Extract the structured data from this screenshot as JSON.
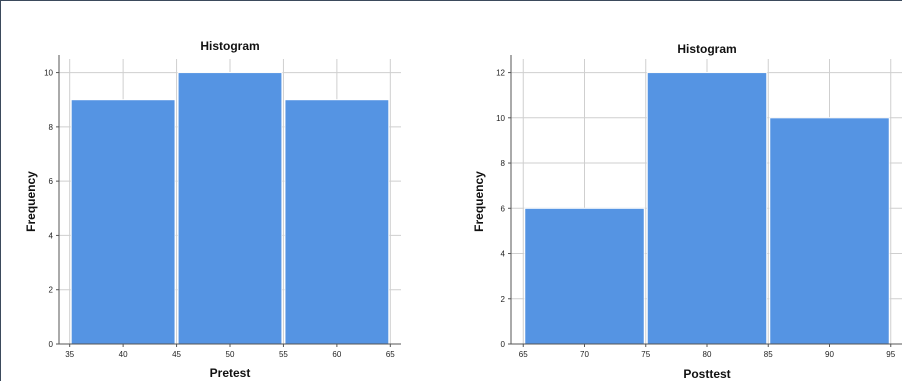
{
  "colors": {
    "bar_fill": "#5594e3",
    "bar_stroke": "#ffffff",
    "grid": "#cfcfcf",
    "axis": "#555555",
    "frame": "#3b4a5c"
  },
  "chart_data": [
    {
      "type": "bar",
      "title": "Histogram",
      "xlabel": "Pretest",
      "ylabel": "Frequency",
      "bins": [
        {
          "x0": 35,
          "x1": 45,
          "value": 9
        },
        {
          "x0": 45,
          "x1": 55,
          "value": 10
        },
        {
          "x0": 55,
          "x1": 65,
          "value": 9
        }
      ],
      "xlim": [
        34,
        66
      ],
      "ylim": [
        0,
        10.5
      ],
      "xticks": [
        "35",
        "40",
        "45",
        "50",
        "55",
        "60",
        "65"
      ],
      "xtick_values": [
        35,
        40,
        45,
        50,
        55,
        60,
        65
      ],
      "yticks": [
        "0",
        "2",
        "4",
        "6",
        "8",
        "10"
      ],
      "ytick_values": [
        0,
        2,
        4,
        6,
        8,
        10
      ],
      "grid": true
    },
    {
      "type": "bar",
      "title": "Histogram",
      "xlabel": "Posttest",
      "ylabel": "Frequency",
      "bins": [
        {
          "x0": 65,
          "x1": 75,
          "value": 6
        },
        {
          "x0": 75,
          "x1": 85,
          "value": 12
        },
        {
          "x0": 85,
          "x1": 95,
          "value": 10
        }
      ],
      "xlim": [
        64,
        96
      ],
      "ylim": [
        0,
        12.6
      ],
      "xticks": [
        "65",
        "70",
        "75",
        "80",
        "85",
        "90",
        "95"
      ],
      "xtick_values": [
        65,
        70,
        75,
        80,
        85,
        90,
        95
      ],
      "yticks": [
        "0",
        "2",
        "4",
        "6",
        "8",
        "10",
        "12"
      ],
      "ytick_values": [
        0,
        2,
        4,
        6,
        8,
        10,
        12
      ],
      "grid": true
    }
  ]
}
